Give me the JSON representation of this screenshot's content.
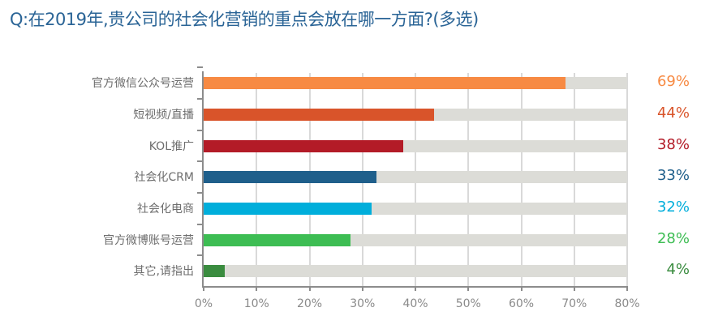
{
  "title": "Q:在2019年,贵公司的社会化营销的重点会放在哪一方面?(多选)",
  "chart_data": {
    "type": "bar",
    "orientation": "horizontal",
    "title": "Q:在2019年,贵公司的社会化营销的重点会放在哪一方面?(多选)",
    "xlabel": "",
    "ylabel": "",
    "xlim": [
      0,
      80
    ],
    "grid": true,
    "categories": [
      "官方微信公众号运营",
      "短视频/直播",
      "KOL推广",
      "社会化CRM",
      "社会化电商",
      "官方微博账号运营",
      "其它,请指出"
    ],
    "values": [
      69,
      44,
      38,
      33,
      32,
      28,
      4
    ],
    "value_labels": [
      "69%",
      "44%",
      "38%",
      "33%",
      "32%",
      "28%",
      "4%"
    ],
    "colors": [
      "#f78a43",
      "#d9542a",
      "#b31b27",
      "#1f5f8b",
      "#00aedb",
      "#3dbd53",
      "#3a8c3f"
    ],
    "x_ticks": [
      "0%",
      "10%",
      "20%",
      "30%",
      "40%",
      "50%",
      "60%",
      "70%",
      "80%"
    ]
  }
}
